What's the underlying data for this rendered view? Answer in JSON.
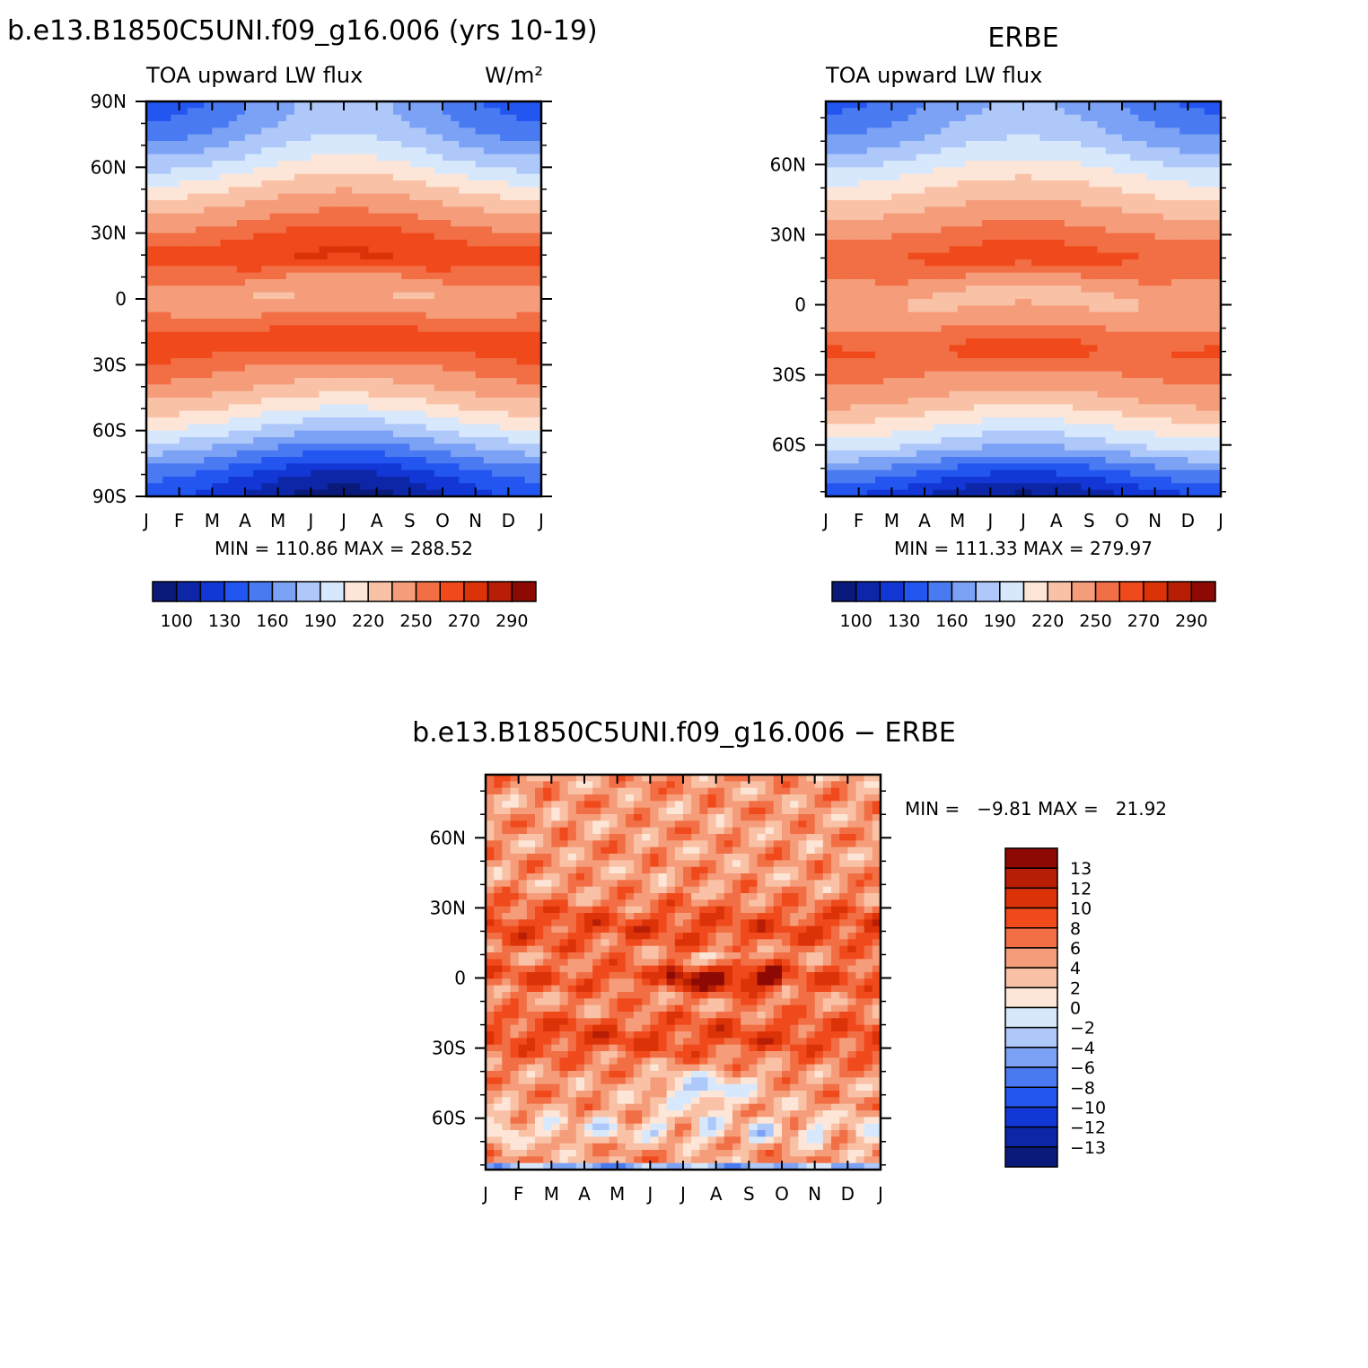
{
  "panels": {
    "model": {
      "title": "b.e13.B1850C5UNI.f09_g16.006 (yrs 10-19)",
      "left_label": "TOA upward LW flux",
      "units": "W/m²",
      "stats": "MIN = 110.86 MAX = 288.52"
    },
    "obs": {
      "title": "ERBE",
      "left_label": "TOA upward LW flux",
      "stats": "MIN = 111.33 MAX = 279.97"
    },
    "diff": {
      "title": "b.e13.B1850C5UNI.f09_g16.006 − ERBE",
      "stats": "MIN =   −9.81 MAX =   21.92"
    }
  },
  "chart_data": [
    {
      "type": "heatmap",
      "title": "b.e13.B1850C5UNI.f09_g16.006 (yrs 10-19)",
      "subtitle": "TOA upward LW flux",
      "units": "W/m²",
      "x_ticks": [
        "J",
        "F",
        "M",
        "A",
        "M",
        "J",
        "J",
        "A",
        "S",
        "O",
        "N",
        "D",
        "J"
      ],
      "y_ticks": [
        "90N",
        "60N",
        "30N",
        "0",
        "30S",
        "60S",
        "90S"
      ],
      "y_tick_values": [
        90,
        60,
        30,
        0,
        -30,
        -60,
        -90
      ],
      "y_range": [
        -90,
        90
      ],
      "min": 110.86,
      "max": 288.52,
      "colorbar_labels": [
        "100",
        "130",
        "160",
        "190",
        "220",
        "250",
        "270",
        "290"
      ],
      "colors": [
        "#0a1a7a",
        "#0d26a8",
        "#1237d6",
        "#2356f0",
        "#4a7af2",
        "#7ca2f5",
        "#aec8fa",
        "#d8e8fc",
        "#fde6d8",
        "#f9c2a6",
        "#f59d7a",
        "#f26f45",
        "#f04a1c",
        "#dc3208",
        "#b81e05",
        "#8c0a03"
      ],
      "profile_base": [
        [
          -90,
          112
        ],
        [
          -80,
          130
        ],
        [
          -70,
          160
        ],
        [
          -60,
          190
        ],
        [
          -50,
          215
        ],
        [
          -40,
          238
        ],
        [
          -30,
          252
        ],
        [
          -20,
          263
        ],
        [
          -10,
          255
        ],
        [
          0,
          245
        ],
        [
          10,
          257
        ],
        [
          20,
          268
        ],
        [
          30,
          258
        ],
        [
          40,
          242
        ],
        [
          50,
          222
        ],
        [
          60,
          200
        ],
        [
          70,
          180
        ],
        [
          80,
          165
        ],
        [
          90,
          158
        ]
      ]
    },
    {
      "type": "heatmap",
      "title": "ERBE",
      "subtitle": "TOA upward LW flux",
      "x_ticks": [
        "J",
        "F",
        "M",
        "A",
        "M",
        "J",
        "J",
        "A",
        "S",
        "O",
        "N",
        "D",
        "J"
      ],
      "y_ticks": [
        "60N",
        "30N",
        "0",
        "30S",
        "60S"
      ],
      "y_tick_values": [
        60,
        30,
        0,
        -30,
        -60
      ],
      "y_range": [
        -82,
        87
      ],
      "min": 111.33,
      "max": 279.97,
      "colorbar_labels": [
        "100",
        "130",
        "160",
        "190",
        "220",
        "250",
        "270",
        "290"
      ],
      "colors": [
        "#0a1a7a",
        "#0d26a8",
        "#1237d6",
        "#2356f0",
        "#4a7af2",
        "#7ca2f5",
        "#aec8fa",
        "#d8e8fc",
        "#fde6d8",
        "#f9c2a6",
        "#f59d7a",
        "#f26f45",
        "#f04a1c",
        "#dc3208",
        "#b81e05",
        "#8c0a03"
      ],
      "profile_base": [
        [
          -82,
          112
        ],
        [
          -70,
          150
        ],
        [
          -60,
          188
        ],
        [
          -50,
          212
        ],
        [
          -40,
          236
        ],
        [
          -30,
          250
        ],
        [
          -20,
          258
        ],
        [
          -10,
          250
        ],
        [
          0,
          242
        ],
        [
          10,
          252
        ],
        [
          20,
          262
        ],
        [
          30,
          252
        ],
        [
          40,
          236
        ],
        [
          50,
          218
        ],
        [
          60,
          198
        ],
        [
          70,
          178
        ],
        [
          80,
          164
        ],
        [
          87,
          158
        ]
      ]
    },
    {
      "type": "heatmap",
      "title": "b.e13.B1850C5UNI.f09_g16.006 − ERBE",
      "x_ticks": [
        "J",
        "F",
        "M",
        "A",
        "M",
        "J",
        "J",
        "A",
        "S",
        "O",
        "N",
        "D",
        "J"
      ],
      "y_ticks": [
        "60N",
        "30N",
        "0",
        "30S",
        "60S"
      ],
      "y_tick_values": [
        60,
        30,
        0,
        -30,
        -60
      ],
      "y_range": [
        -82,
        87
      ],
      "min": -9.81,
      "max": 21.92,
      "colorbar_labels": [
        "13",
        "12",
        "10",
        "8",
        "6",
        "4",
        "2",
        "0",
        "−2",
        "−4",
        "−6",
        "−8",
        "−10",
        "−12",
        "−13"
      ],
      "colors": [
        "#8c0a03",
        "#b81e05",
        "#dc3208",
        "#f04a1c",
        "#f26f45",
        "#f59d7a",
        "#f9c2a6",
        "#fde6d8",
        "#d8e8fc",
        "#aec8fa",
        "#7ca2f5",
        "#4a7af2",
        "#2356f0",
        "#1237d6",
        "#0d26a8",
        "#0a1a7a"
      ]
    }
  ]
}
